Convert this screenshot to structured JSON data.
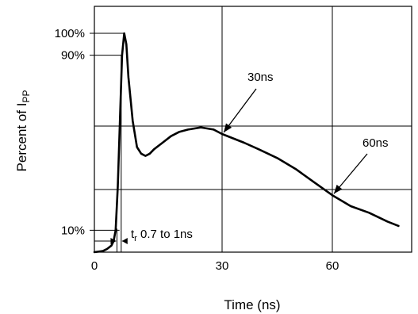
{
  "chart_data": {
    "type": "line",
    "xlabel": "Time (ns)",
    "ylabel": "Percent of I",
    "ylabel_subscript": "PP",
    "xlim": [
      0,
      78
    ],
    "ylim": [
      0,
      100
    ],
    "x_ticks": [
      "0",
      "30",
      "60"
    ],
    "x_tick_values": [
      0,
      30,
      60
    ],
    "grid": true,
    "y_markers": [
      {
        "label": "100%",
        "value": 100
      },
      {
        "label": "90%",
        "value": 90
      },
      {
        "label": "10%",
        "value": 10
      }
    ],
    "series": [
      {
        "x": [
          0,
          2,
          3,
          4,
          4.5,
          5,
          5.5,
          6,
          6.5,
          7,
          7.5,
          8,
          9,
          10,
          11,
          12,
          13,
          14,
          16,
          18,
          20,
          22,
          25,
          28,
          30,
          33,
          36,
          40,
          45,
          50,
          55,
          60,
          65,
          70,
          75,
          78
        ],
        "values": [
          0,
          0.5,
          1.5,
          3,
          5,
          10,
          30,
          60,
          90,
          100,
          95,
          80,
          60,
          48,
          45,
          44,
          45,
          47,
          50,
          53,
          55,
          56,
          57,
          56,
          54,
          52,
          50,
          47,
          43,
          38,
          32,
          26,
          21,
          18,
          14,
          12
        ]
      }
    ],
    "annotations": [
      {
        "label": "30ns",
        "x": 30,
        "y": 54
      },
      {
        "label": "60ns",
        "x": 60,
        "y": 26
      },
      {
        "label": "t",
        "label_subscript": "r",
        "label_rest": " 0.7 to 1ns"
      }
    ]
  }
}
